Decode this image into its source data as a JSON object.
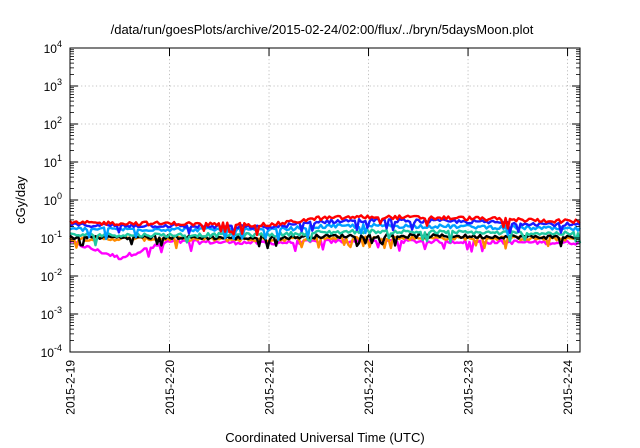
{
  "chart_data": {
    "type": "line",
    "title": "/data/run/goesPlots/archive/2015-02-24/02:00/flux/../bryn/5daysMoon.plot",
    "xlabel": "Coordinated Universal Time (UTC)",
    "ylabel": "cGy/day",
    "x_range": [
      "2015-02-19",
      "2015-02-24 03:00"
    ],
    "ylim": [
      0.0001,
      10000
    ],
    "yscale": "log",
    "grid": true,
    "x_ticks": [
      "2015-2-19",
      "2015-2-20",
      "2015-2-21",
      "2015-2-22",
      "2015-2-23",
      "2015-2-24"
    ],
    "y_ticks": [
      {
        "base": "10",
        "exp": "4"
      },
      {
        "base": "10",
        "exp": "3"
      },
      {
        "base": "10",
        "exp": "2"
      },
      {
        "base": "10",
        "exp": "1"
      },
      {
        "base": "10",
        "exp": "0"
      },
      {
        "base": "10",
        "exp": "-1"
      },
      {
        "base": "10",
        "exp": "-2"
      },
      {
        "base": "10",
        "exp": "-3"
      },
      {
        "base": "10",
        "exp": "-4"
      }
    ],
    "series": [
      {
        "color": "#ff0000",
        "x": [
          "2015-02-19",
          "2015-02-20",
          "2015-02-21",
          "2015-02-21 12:00",
          "2015-02-22",
          "2015-02-23",
          "2015-02-24 03:00"
        ],
        "values": [
          0.25,
          0.24,
          0.22,
          0.33,
          0.36,
          0.33,
          0.27
        ]
      },
      {
        "color": "#1a1aff",
        "x": [
          "2015-02-19",
          "2015-02-20",
          "2015-02-21",
          "2015-02-21 12:00",
          "2015-02-22",
          "2015-02-23",
          "2015-02-24 03:00"
        ],
        "values": [
          0.22,
          0.21,
          0.19,
          0.27,
          0.29,
          0.27,
          0.22
        ]
      },
      {
        "color": "#00a0ff",
        "x": [
          "2015-02-19",
          "2015-02-20",
          "2015-02-21",
          "2015-02-21 12:00",
          "2015-02-22",
          "2015-02-23",
          "2015-02-24 03:00"
        ],
        "values": [
          0.17,
          0.17,
          0.16,
          0.2,
          0.21,
          0.2,
          0.17
        ]
      },
      {
        "color": "#20c8a0",
        "x": [
          "2015-02-19",
          "2015-02-20",
          "2015-02-21",
          "2015-02-21 12:00",
          "2015-02-22",
          "2015-02-23",
          "2015-02-24 03:00"
        ],
        "values": [
          0.12,
          0.12,
          0.12,
          0.14,
          0.15,
          0.14,
          0.13
        ]
      },
      {
        "color": "#000000",
        "x": [
          "2015-02-19",
          "2015-02-20",
          "2015-02-21",
          "2015-02-21 12:00",
          "2015-02-22",
          "2015-02-23",
          "2015-02-24 03:00"
        ],
        "values": [
          0.105,
          0.105,
          0.1,
          0.11,
          0.115,
          0.11,
          0.105
        ]
      },
      {
        "color": "#ff8c00",
        "x": [
          "2015-02-19",
          "2015-02-20",
          "2015-02-21",
          "2015-02-21 12:00",
          "2015-02-22",
          "2015-02-23",
          "2015-02-24 03:00"
        ],
        "values": [
          0.095,
          0.095,
          0.09,
          0.1,
          0.1,
          0.1,
          0.095
        ]
      },
      {
        "color": "#ff00ff",
        "x": [
          "2015-02-19",
          "2015-02-19 12:00",
          "2015-02-20",
          "2015-02-21",
          "2015-02-22",
          "2015-02-23",
          "2015-02-24 03:00"
        ],
        "values": [
          0.08,
          0.03,
          0.08,
          0.075,
          0.085,
          0.08,
          0.075
        ]
      }
    ]
  }
}
